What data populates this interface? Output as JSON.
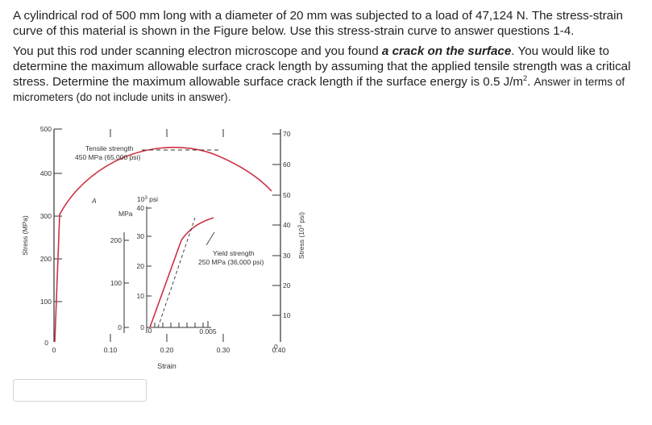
{
  "question": {
    "line1": "A cylindrical rod of 500 mm long with a diameter of 20 mm was subjected to a load of 47,124 N. The stress-strain curve of this material is shown in the Figure below.  Use this stress-strain curve to answer questions 1-4.",
    "p2_pre": "You put this rod under scanning electron microscope and you found ",
    "p2_bold": "a crack on the surface",
    "p2_mid": ". You would like to determine the maximum allowable surface crack length by assuming that the applied tensile strength was a critical stress.  Determine the maximum allowable surface crack length if the surface energy is 0.5 J/m",
    "p2_sup": "2",
    "p2_dot": ". ",
    "p2_small": "Answer in terms of micrometers (do not include units in answer)."
  },
  "figure": {
    "y_label_left": "Stress (MPa)",
    "y_label_right_pre": "Stress (10",
    "y_label_right_sup": "3",
    "y_label_right_post": " psi)",
    "x_label": "Strain",
    "left_ticks": [
      "0",
      "100",
      "200",
      "300",
      "400",
      "500"
    ],
    "right_ticks": [
      "0",
      "10",
      "20",
      "30",
      "40",
      "50",
      "60",
      "70"
    ],
    "x_ticks": [
      "0",
      "0.10",
      "0.20",
      "0.30",
      "0.40"
    ],
    "tensile_line1": "Tensile strength",
    "tensile_line2": "450 MPa (65,000 psi)",
    "point_a": "A",
    "inset_psi_pre": "10",
    "inset_psi_sup": "3",
    "inset_psi_post": " psi",
    "inset_mpa": "MPa",
    "inset_mpa_ticks": [
      "0",
      "100",
      "200"
    ],
    "inset_psi_ticks": [
      "0",
      "10",
      "20",
      "30",
      "40"
    ],
    "inset_x_tick": "0.005",
    "inset_x_zero": "0",
    "yield_line1": "Yield strength",
    "yield_line2": "250 MPa (36,000 psi)",
    "curve_color": "#cc3344"
  },
  "answer": {
    "value": ""
  }
}
